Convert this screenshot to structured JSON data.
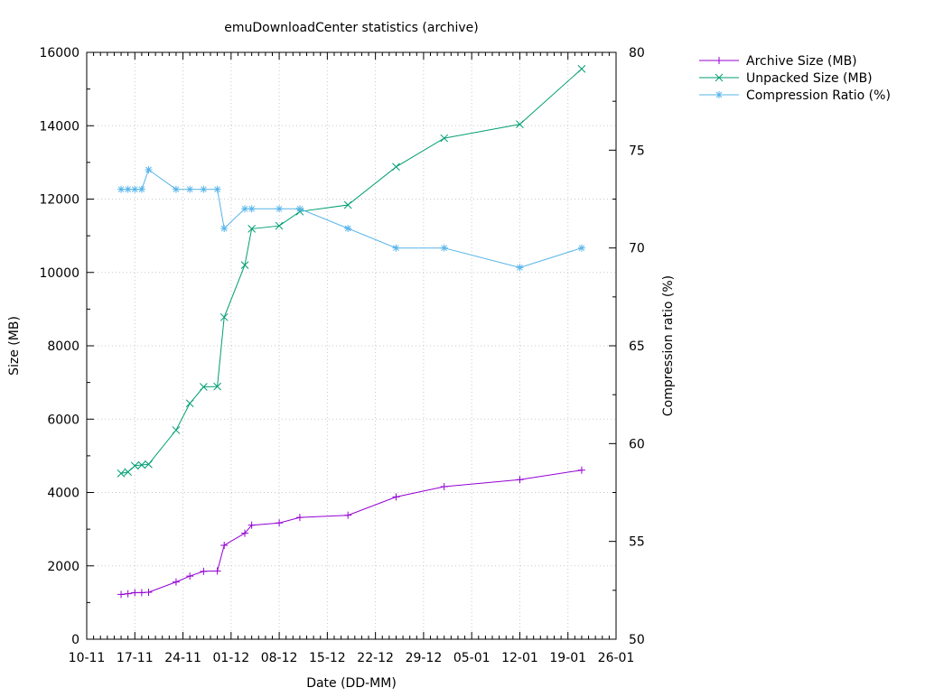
{
  "chart_data": {
    "type": "line",
    "title": "emuDownloadCenter statistics (archive)",
    "xlabel": "Date (DD-MM)",
    "ylabel": "Size (MB)",
    "y2label": "Compression ratio (%)",
    "x_is_date": true,
    "xlim": [
      "2016-11-10",
      "2017-01-26"
    ],
    "xticks": [
      "2016-11-10",
      "2016-11-17",
      "2016-11-24",
      "2016-12-01",
      "2016-12-08",
      "2016-12-15",
      "2016-12-22",
      "2016-12-29",
      "2017-01-05",
      "2017-01-12",
      "2017-01-19",
      "2017-01-26"
    ],
    "xtick_labels": [
      "10-11",
      "17-11",
      "24-11",
      "01-12",
      "08-12",
      "15-12",
      "22-12",
      "29-12",
      "05-01",
      "12-01",
      "19-01",
      "26-01"
    ],
    "ylim": [
      0,
      16000
    ],
    "yticks": [
      0,
      2000,
      4000,
      6000,
      8000,
      10000,
      12000,
      14000,
      16000
    ],
    "y2lim": [
      50,
      80
    ],
    "y2ticks": [
      50,
      55,
      60,
      65,
      70,
      75,
      80
    ],
    "grid": true,
    "legend_position": "outside-top-right",
    "series": [
      {
        "name": "Archive Size (MB)",
        "axis": "y",
        "color": "#9400d3",
        "marker": "plus",
        "x": [
          "2016-11-15",
          "2016-11-16",
          "2016-11-17",
          "2016-11-18",
          "2016-11-19",
          "2016-11-23",
          "2016-11-25",
          "2016-11-27",
          "2016-11-29",
          "2016-11-30",
          "2016-12-03",
          "2016-12-04",
          "2016-12-08",
          "2016-12-11",
          "2016-12-18",
          "2016-12-25",
          "2017-01-01",
          "2017-01-12",
          "2017-01-21"
        ],
        "y": [
          1220,
          1240,
          1270,
          1270,
          1280,
          1560,
          1720,
          1850,
          1860,
          2560,
          2890,
          3110,
          3170,
          3320,
          3380,
          3880,
          4160,
          4350,
          4610
        ]
      },
      {
        "name": "Unpacked Size (MB)",
        "axis": "y",
        "color": "#009e73",
        "marker": "x",
        "x": [
          "2016-11-15",
          "2016-11-16",
          "2016-11-17",
          "2016-11-18",
          "2016-11-19",
          "2016-11-23",
          "2016-11-25",
          "2016-11-27",
          "2016-11-29",
          "2016-11-30",
          "2016-12-03",
          "2016-12-04",
          "2016-12-08",
          "2016-12-11",
          "2016-12-18",
          "2016-12-25",
          "2017-01-01",
          "2017-01-12",
          "2017-01-21"
        ],
        "y": [
          4520,
          4560,
          4730,
          4750,
          4770,
          5700,
          6430,
          6880,
          6890,
          8780,
          10200,
          11190,
          11270,
          11660,
          11840,
          12880,
          13660,
          14040,
          15550
        ]
      },
      {
        "name": "Compression Ratio (%)",
        "axis": "y2",
        "color": "#56b4e9",
        "marker": "star",
        "x": [
          "2016-11-15",
          "2016-11-16",
          "2016-11-17",
          "2016-11-18",
          "2016-11-19",
          "2016-11-23",
          "2016-11-25",
          "2016-11-27",
          "2016-11-29",
          "2016-11-30",
          "2016-12-03",
          "2016-12-04",
          "2016-12-08",
          "2016-12-11",
          "2016-12-18",
          "2016-12-25",
          "2017-01-01",
          "2017-01-12",
          "2017-01-21"
        ],
        "y": [
          73,
          73,
          73,
          73,
          74,
          73,
          73,
          73,
          73,
          71,
          72,
          72,
          72,
          72,
          71,
          70,
          70,
          69,
          70
        ]
      }
    ]
  }
}
